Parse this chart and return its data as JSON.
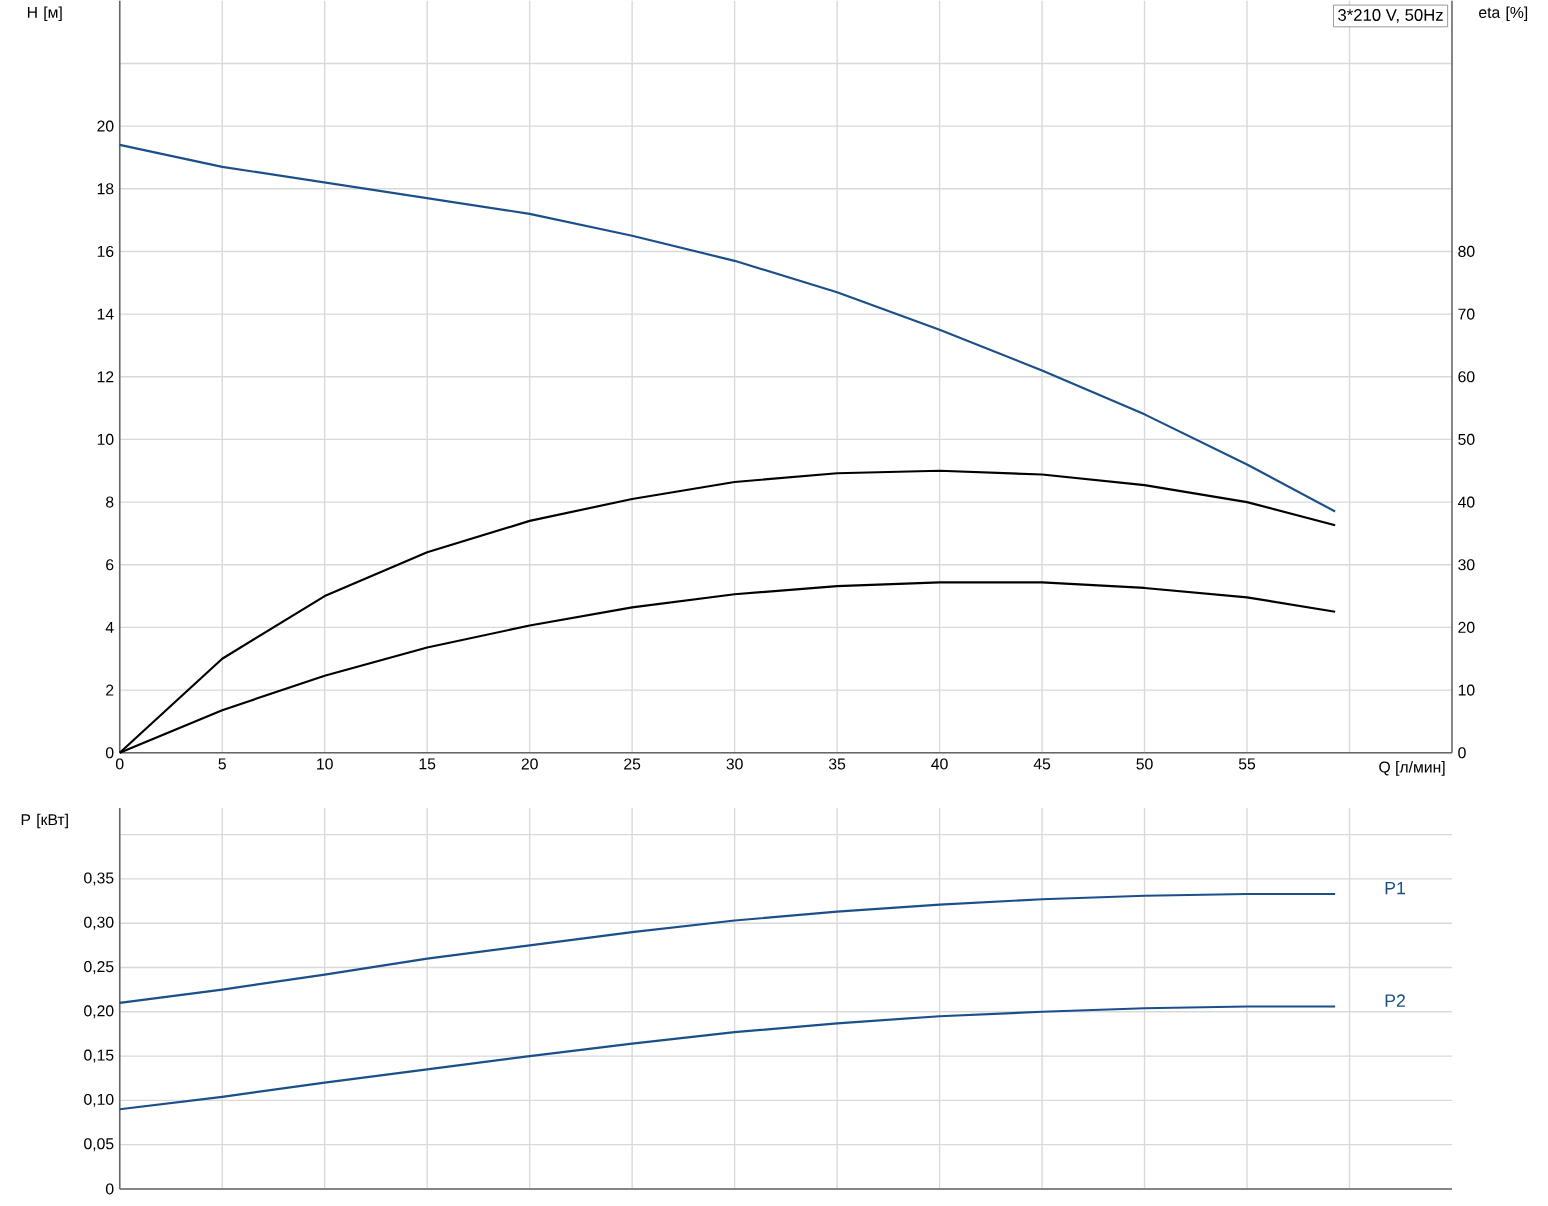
{
  "chart_data": [
    {
      "type": "line",
      "xlabel": "Q [л/мин]",
      "ylabel": "H [м]",
      "y2label": "eta [%]",
      "annotations": [
        "3*210 V, 50Hz"
      ],
      "x": [
        0,
        5,
        10,
        15,
        20,
        25,
        30,
        35,
        40,
        45,
        50,
        55,
        59.3
      ],
      "series": [
        {
          "color": "#1b4f8a",
          "values": [
            19.4,
            18.7,
            18.2,
            17.7,
            17.2,
            16.5,
            15.7,
            14.7,
            13.5,
            12.2,
            10.8,
            9.2,
            7.7
          ]
        },
        {
          "color": "#000000",
          "axis": "y2",
          "values": [
            0,
            15,
            25,
            32,
            37,
            40.5,
            43.2,
            44.6,
            45,
            44.4,
            42.7,
            40,
            36.3
          ]
        },
        {
          "color": "#000000",
          "axis": "y2",
          "values": [
            0,
            6.8,
            12.3,
            16.8,
            20.3,
            23.2,
            25.3,
            26.6,
            27.2,
            27.2,
            26.3,
            24.8,
            22.5
          ]
        }
      ],
      "xlim": [
        0,
        65
      ],
      "xticks": [
        0,
        5,
        10,
        15,
        20,
        25,
        30,
        35,
        40,
        45,
        50,
        55,
        {
          "value": 60,
          "label": null
        }
      ],
      "ylim": [
        0,
        24
      ],
      "yticks": [
        0,
        2,
        4,
        6,
        8,
        10,
        12,
        14,
        16,
        18,
        20,
        {
          "value": 22,
          "label": null
        }
      ],
      "y2lim": [
        0,
        120
      ],
      "y2ticks": [
        0,
        10,
        20,
        30,
        40,
        50,
        60,
        70,
        80
      ],
      "grid": true
    },
    {
      "type": "line",
      "ylabel": "P [кВт]",
      "x": [
        0,
        5,
        10,
        15,
        20,
        25,
        30,
        35,
        40,
        45,
        50,
        55,
        59.3
      ],
      "series": [
        {
          "name": "P1",
          "color": "#1b4f8a",
          "values": [
            0.21,
            0.225,
            0.242,
            0.26,
            0.275,
            0.29,
            0.303,
            0.313,
            0.321,
            0.327,
            0.331,
            0.333,
            0.333
          ]
        },
        {
          "name": "P2",
          "color": "#1b4f8a",
          "values": [
            0.09,
            0.104,
            0.12,
            0.135,
            0.15,
            0.164,
            0.177,
            0.187,
            0.195,
            0.2,
            0.204,
            0.206,
            0.206
          ]
        }
      ],
      "xlim": [
        0,
        65
      ],
      "xticks": [
        0,
        5,
        10,
        15,
        20,
        25,
        30,
        35,
        40,
        45,
        50,
        55,
        {
          "value": 60,
          "label": null
        }
      ],
      "ylim": [
        0,
        0.43
      ],
      "yticks": [
        0,
        {
          "value": 0.05,
          "label": "0,05"
        },
        {
          "value": 0.1,
          "label": "0,10"
        },
        {
          "value": 0.15,
          "label": "0,15"
        },
        {
          "value": 0.2,
          "label": "0,20"
        },
        {
          "value": 0.25,
          "label": "0,25"
        },
        {
          "value": 0.3,
          "label": "0,30"
        },
        {
          "value": 0.35,
          "label": "0,35"
        },
        {
          "value": 0.4,
          "label": null
        }
      ],
      "tick_labels": "y",
      "grid": true
    }
  ]
}
